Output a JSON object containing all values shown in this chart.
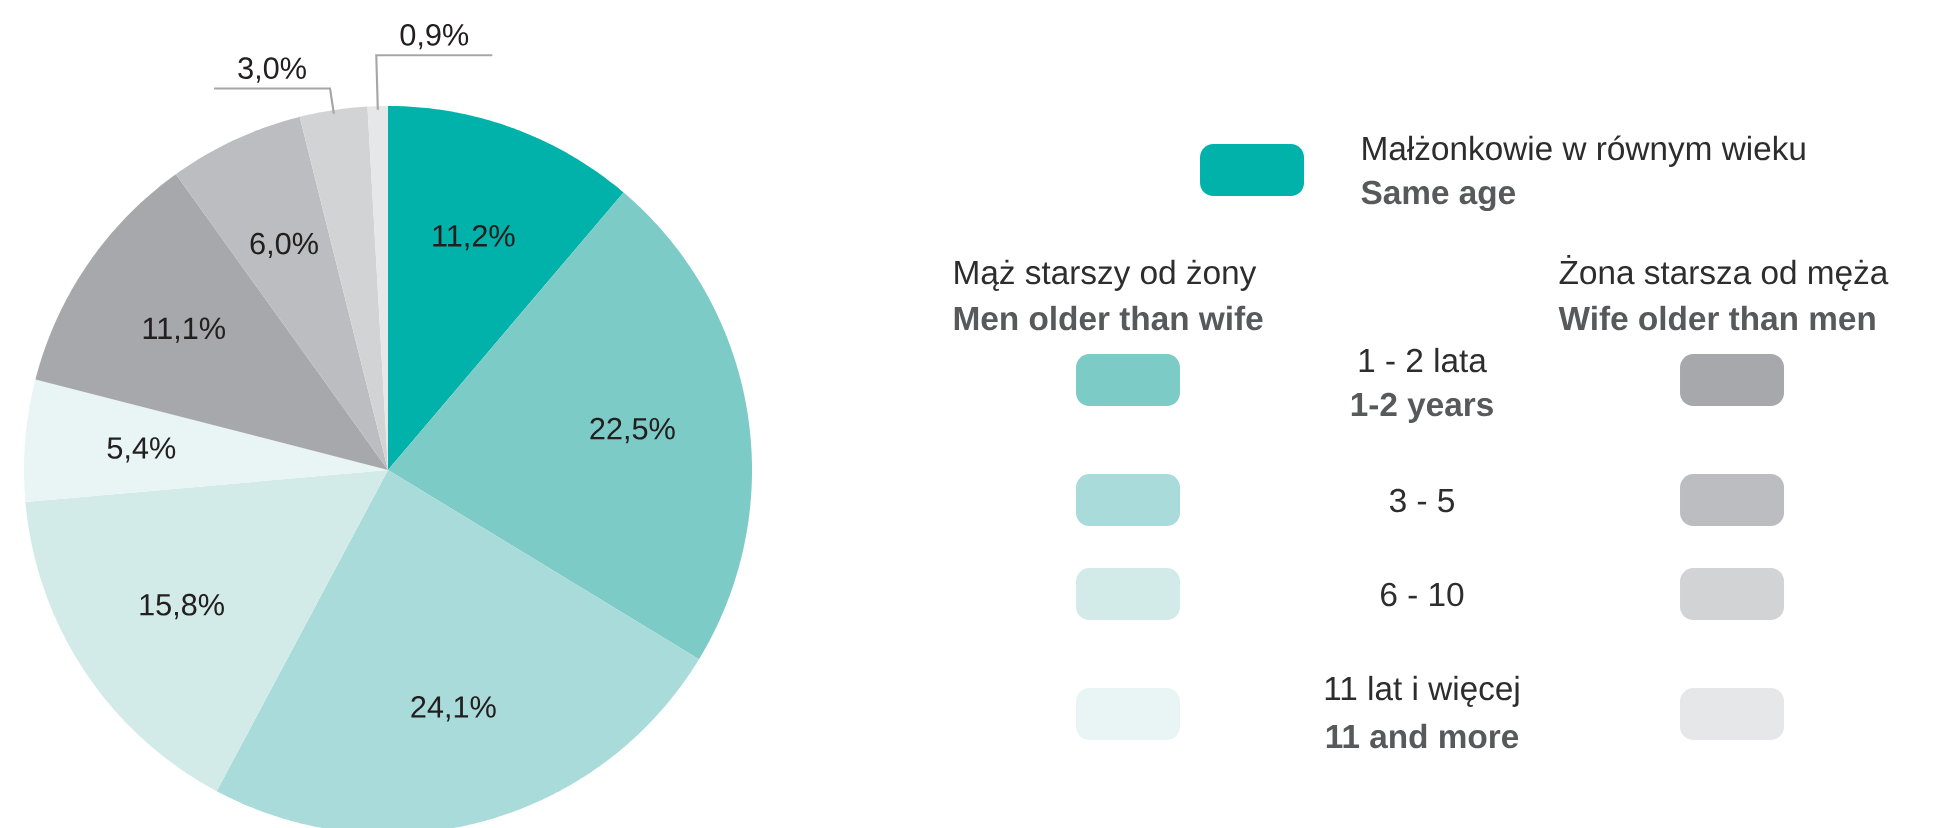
{
  "chart_data": {
    "type": "pie",
    "categories": [
      "Małżonkowie w równym wieku",
      null,
      null,
      null,
      null,
      null,
      null,
      null,
      null
    ],
    "values": [
      11.2,
      22.5,
      24.1,
      15.8,
      5.4,
      11.1,
      6.0,
      3.0,
      0.9
    ],
    "colors": [
      "#00b2a9",
      "#7dcbc6",
      "#a8dbd9",
      "#d2ebe8",
      "#e8f5f4",
      "#a7a8ab",
      "#bcbdc0",
      "#d2d3d5",
      "#e6e7e8"
    ],
    "value_labels": [
      "11,2%",
      "22,5%",
      "24,1%",
      "15,8%",
      "5,4%",
      "11,1%",
      "6,0%",
      "3,0%",
      "0,9%"
    ],
    "legend": "right",
    "annotations": [
      "Same age",
      "Mąż starszy od żony",
      "Men older than wife",
      "Żona starsza od męża",
      "Wife older than men",
      "1 - 2 lata",
      "1-2 years",
      "3 - 5",
      "6 - 10",
      "11 lat i więcej",
      "11 and more"
    ]
  }
}
